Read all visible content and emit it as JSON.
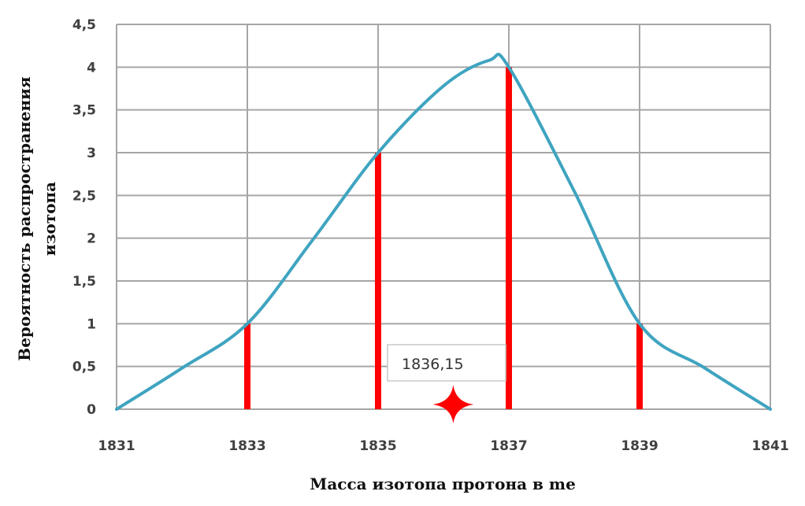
{
  "chart_data": {
    "type": "line",
    "title": "",
    "xlabel": "Масса изотопа протона  в me",
    "ylabel_lines": [
      "Вероятность распространения",
      "изотопа"
    ],
    "xlim": [
      1831,
      1841
    ],
    "ylim": [
      0,
      4.5
    ],
    "grid": true,
    "legend": null,
    "x_ticks": [
      1831,
      1833,
      1835,
      1837,
      1839,
      1841
    ],
    "x_tick_labels": [
      "1831",
      "1833",
      "1835",
      "1837",
      "1839",
      "1841"
    ],
    "y_ticks": [
      0,
      0.5,
      1,
      1.5,
      2,
      2.5,
      3,
      3.5,
      4,
      4.5
    ],
    "y_tick_labels": [
      "0",
      "0,5",
      "1",
      "1,5",
      "2",
      "2,5",
      "3",
      "3,5",
      "4",
      "4,5"
    ],
    "series": [
      {
        "name": "distribution-curve",
        "kind": "smooth-line",
        "color": "#3FA4C0",
        "x": [
          1831,
          1832,
          1833,
          1834,
          1835,
          1836,
          1836.7,
          1837,
          1838,
          1839,
          1840,
          1841
        ],
        "y": [
          0,
          0.48,
          1.0,
          1.98,
          3.0,
          3.78,
          4.08,
          4.0,
          2.55,
          1.0,
          0.48,
          0
        ]
      },
      {
        "name": "isotope-bars",
        "kind": "vertical-lines",
        "color": "#FF0000",
        "x": [
          1833,
          1835,
          1837,
          1839
        ],
        "y": [
          1,
          3,
          4,
          1
        ]
      }
    ],
    "annotations": [
      {
        "type": "callout",
        "text": "1836,15",
        "x": 1836.15,
        "marker": "red-four-point-star",
        "marker_color": "#FF0000"
      }
    ]
  },
  "callout": {
    "label": "1836,15"
  },
  "axes": {
    "xlabel": "Масса изотопа протона  в me",
    "ylabel_line1": "Вероятность распространения",
    "ylabel_line2": "изотопа"
  }
}
